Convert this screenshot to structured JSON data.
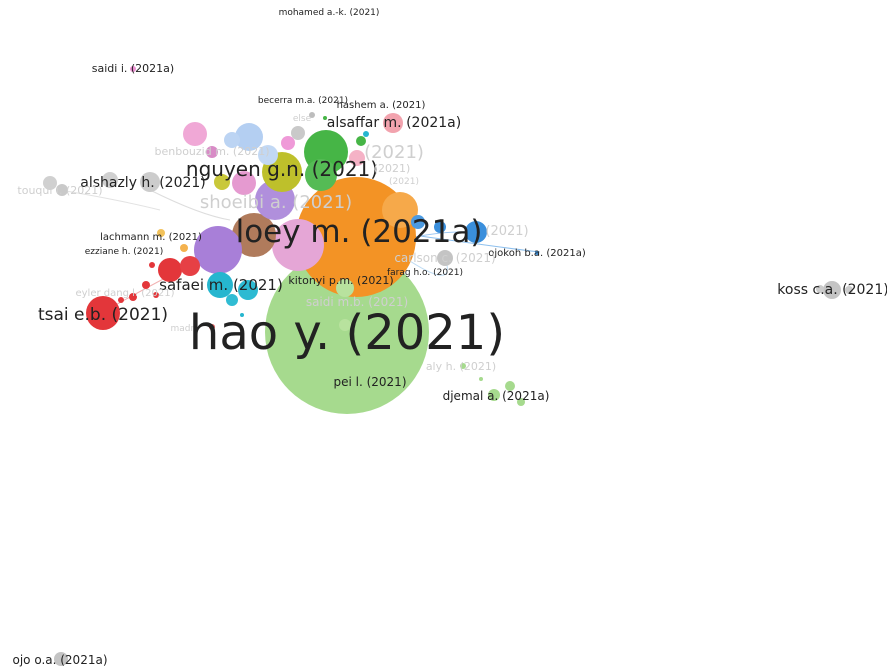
{
  "colors": {
    "green_light": "#a3d98a",
    "orange": "#f39325",
    "purple": "#a87fd8",
    "blue": "#3a8fdc",
    "blue_light": "#a9c8ef",
    "red": "#e3363a",
    "cyan": "#26b6cf",
    "green": "#46b546",
    "olive": "#bec02b",
    "brown": "#b07b5c",
    "pink": "#e98fd0",
    "grey": "#c4c4c4",
    "pink_light": "#f0a7c0"
  },
  "labels": {
    "hao": "hao y. (2021)",
    "loey": "loey m. (2021a)",
    "nguyen": "nguyen g.n. (2021)",
    "shoeibi": "shoeibi a. (2021)",
    "alshazly": "alshazly h. (2021)",
    "tsai": "tsai e.b. (2021)",
    "safaei": "safaei m. (2021)",
    "alsaffar": "alsaffar m. (2021a)",
    "koss": "koss c.a. (2021)",
    "ojo": "ojo o.a. (2021a)",
    "djemal": "djemal a. (2021a)",
    "pei": "pei l. (2021)",
    "kitonyi": "kitonyi p.m. (2021)",
    "carlson": "carlson c. (2021)",
    "ojokoh": "ojokoh b.a. (2021a)",
    "farag": "farag h.o. (2021)",
    "lachmann": "lachmann m. (2021)",
    "ezziane": "ezziane h. (2021)",
    "eyler": "eyler dang l. (2021)",
    "madry": "madry",
    "saidi_i": "saidi i. (2021a)",
    "mohamed": "mohamed a.-k. (2021)",
    "becerra": "becerra m.a. (2021)",
    "hashem": "hashem a. (2021)",
    "benbouzid": "benbouzid m. (2021)",
    "touqui": "touqui i. (2021)",
    "saidi_m": "saidi m.b. (2021)",
    "aly": "aly h. (2021)",
    "else": "else",
    "loey_2021": "(2021)",
    "mid_2021": "(2021)",
    "small_2021": "(2021)"
  },
  "chart_data": {
    "type": "network",
    "nodes": [
      {
        "id": "hao",
        "label": "hao y. (2021)",
        "cluster": "green_light",
        "weight": 100
      },
      {
        "id": "loey",
        "label": "loey m. (2021a)",
        "cluster": "orange",
        "weight": 45
      },
      {
        "id": "nguyen",
        "label": "nguyen g.n. (2021)",
        "cluster": "olive",
        "weight": 15
      },
      {
        "id": "shoeibi",
        "label": "shoeibi a. (2021)",
        "cluster": "purple",
        "weight": 12
      },
      {
        "id": "alshazly",
        "label": "alshazly h. (2021)",
        "cluster": "grey",
        "weight": 6
      },
      {
        "id": "tsai",
        "label": "tsai e.b. (2021)",
        "cluster": "red",
        "weight": 8
      },
      {
        "id": "safaei",
        "label": "safaei m. (2021)",
        "cluster": "cyan",
        "weight": 6
      },
      {
        "id": "alsaffar",
        "label": "alsaffar m. (2021a)",
        "cluster": "pink_light",
        "weight": 4
      },
      {
        "id": "koss",
        "label": "koss c.a. (2021)",
        "cluster": "grey",
        "weight": 4
      },
      {
        "id": "ojo",
        "label": "ojo o.a. (2021a)",
        "cluster": "grey",
        "weight": 3
      }
    ]
  }
}
